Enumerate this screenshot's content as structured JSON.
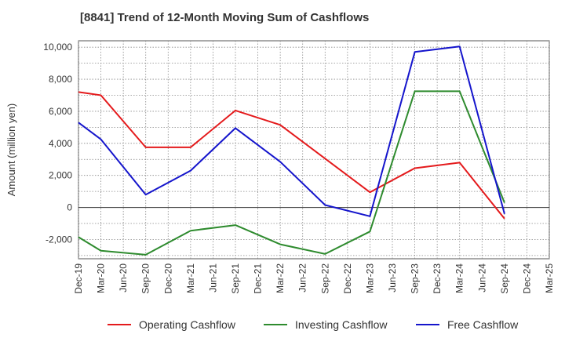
{
  "chart_data": {
    "type": "line",
    "title": "[8841]  Trend of 12-Month Moving Sum of Cashflows",
    "xlabel": "",
    "ylabel": "Amount (million yen)",
    "categories": [
      "Dec-19",
      "Mar-20",
      "Jun-20",
      "Sep-20",
      "Dec-20",
      "Mar-21",
      "Jun-21",
      "Sep-21",
      "Dec-21",
      "Mar-22",
      "Jun-22",
      "Sep-22",
      "Dec-22",
      "Mar-23",
      "Jun-23",
      "Sep-23",
      "Dec-23",
      "Mar-24",
      "Jun-24",
      "Sep-24",
      "Dec-24",
      "Mar-25"
    ],
    "ylim": [
      -3200,
      10400
    ],
    "yticks": [
      -2000,
      0,
      2000,
      4000,
      6000,
      8000,
      10000
    ],
    "ytick_labels": [
      "-2,000",
      "0",
      "2,000",
      "4,000",
      "6,000",
      "8,000",
      "10,000"
    ],
    "grid": true,
    "legend_position": "bottom",
    "series": [
      {
        "name": "Operating Cashflow",
        "color": "#e41a1c",
        "values": [
          7200,
          7000,
          null,
          3750,
          null,
          3750,
          null,
          6050,
          null,
          5150,
          null,
          null,
          null,
          950,
          null,
          2450,
          null,
          2800,
          null,
          -700,
          null,
          null
        ]
      },
      {
        "name": "Investing Cashflow",
        "color": "#2e8b2e",
        "values": [
          -1850,
          -2700,
          null,
          -2950,
          null,
          -1450,
          null,
          -1100,
          null,
          -2300,
          null,
          -2900,
          null,
          -1500,
          null,
          7250,
          null,
          7250,
          null,
          300,
          null,
          null
        ]
      },
      {
        "name": "Free Cashflow",
        "color": "#1515cc",
        "values": [
          5300,
          4250,
          null,
          800,
          null,
          2300,
          null,
          4950,
          null,
          2850,
          null,
          150,
          null,
          -550,
          null,
          9700,
          null,
          10050,
          null,
          -400,
          null,
          null
        ]
      }
    ]
  }
}
